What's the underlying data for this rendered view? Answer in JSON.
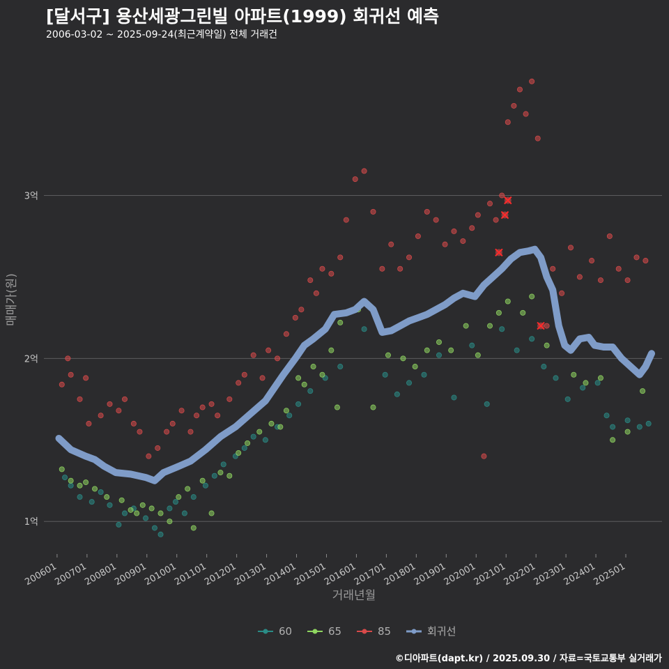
{
  "header": {
    "title": "[달서구] 용산세광그린빌 아파트(1999) 회귀선 예측",
    "subtitle": "2006-03-02 ~ 2025-09-24(최근계약일) 전체 거래건"
  },
  "footer": {
    "credit": "©디아파트(dapt.kr) / 2025.09.30 / 자료=국토교통부 실거래가"
  },
  "colors": {
    "background": "#2b2b2d",
    "grid": "#5c5c5e",
    "s60": "#2a8c86",
    "s65": "#8fd660",
    "s85": "#d94a4a",
    "regression": "#7f9cc8"
  },
  "chart_data": {
    "type": "scatter",
    "xlabel": "거래년월",
    "ylabel": "매매가(원)",
    "xlim": [
      2005.6,
      2026.25
    ],
    "ylim": [
      0.8,
      3.9
    ],
    "y_ticks": [
      {
        "value": 1,
        "label": "1억"
      },
      {
        "value": 2,
        "label": "2억"
      },
      {
        "value": 3,
        "label": "3억"
      }
    ],
    "x_ticks": [
      "200601",
      "200701",
      "200801",
      "200901",
      "201001",
      "201101",
      "201201",
      "201301",
      "201401",
      "201501",
      "201601",
      "201701",
      "201801",
      "201901",
      "202001",
      "202101",
      "202201",
      "202301",
      "202401",
      "202501"
    ],
    "legend": {
      "position": "bottom",
      "items": [
        {
          "key": "s60",
          "label": "60"
        },
        {
          "key": "s65",
          "label": "65"
        },
        {
          "key": "s85",
          "label": "85"
        },
        {
          "key": "regression",
          "label": "회귀선"
        }
      ]
    },
    "series": [
      {
        "name": "60",
        "key": "s60",
        "type": "scatter",
        "points": [
          [
            2006.3,
            1.27
          ],
          [
            2006.5,
            1.22
          ],
          [
            2006.8,
            1.15
          ],
          [
            2007.2,
            1.12
          ],
          [
            2007.5,
            1.18
          ],
          [
            2007.8,
            1.1
          ],
          [
            2008.1,
            0.98
          ],
          [
            2008.3,
            1.05
          ],
          [
            2008.6,
            1.08
          ],
          [
            2009.0,
            1.02
          ],
          [
            2009.3,
            0.96
          ],
          [
            2009.5,
            0.92
          ],
          [
            2009.8,
            1.08
          ],
          [
            2010.0,
            1.12
          ],
          [
            2010.3,
            1.05
          ],
          [
            2010.6,
            1.15
          ],
          [
            2011.0,
            1.22
          ],
          [
            2011.3,
            1.28
          ],
          [
            2011.6,
            1.35
          ],
          [
            2012.0,
            1.4
          ],
          [
            2012.3,
            1.45
          ],
          [
            2012.6,
            1.52
          ],
          [
            2013.0,
            1.5
          ],
          [
            2013.4,
            1.58
          ],
          [
            2013.8,
            1.65
          ],
          [
            2014.1,
            1.72
          ],
          [
            2014.5,
            1.8
          ],
          [
            2015.0,
            1.88
          ],
          [
            2015.5,
            1.95
          ],
          [
            2016.3,
            2.18
          ],
          [
            2017.0,
            1.9
          ],
          [
            2017.4,
            1.78
          ],
          [
            2017.8,
            1.85
          ],
          [
            2018.3,
            1.9
          ],
          [
            2018.8,
            2.02
          ],
          [
            2019.3,
            1.76
          ],
          [
            2019.9,
            2.08
          ],
          [
            2020.4,
            1.72
          ],
          [
            2020.9,
            2.18
          ],
          [
            2021.4,
            2.05
          ],
          [
            2021.9,
            2.12
          ],
          [
            2022.3,
            1.95
          ],
          [
            2022.7,
            1.88
          ],
          [
            2023.1,
            1.75
          ],
          [
            2023.6,
            1.82
          ],
          [
            2024.1,
            1.85
          ],
          [
            2024.4,
            1.65
          ],
          [
            2024.6,
            1.58
          ],
          [
            2025.1,
            1.62
          ],
          [
            2025.5,
            1.58
          ],
          [
            2025.8,
            1.6
          ]
        ]
      },
      {
        "name": "65",
        "key": "s65",
        "type": "scatter",
        "points": [
          [
            2006.2,
            1.32
          ],
          [
            2006.5,
            1.25
          ],
          [
            2006.8,
            1.22
          ],
          [
            2007.0,
            1.24
          ],
          [
            2007.3,
            1.2
          ],
          [
            2007.7,
            1.15
          ],
          [
            2008.2,
            1.13
          ],
          [
            2008.5,
            1.07
          ],
          [
            2008.7,
            1.05
          ],
          [
            2008.9,
            1.1
          ],
          [
            2009.2,
            1.08
          ],
          [
            2009.5,
            1.05
          ],
          [
            2009.8,
            1.0
          ],
          [
            2010.1,
            1.15
          ],
          [
            2010.4,
            1.2
          ],
          [
            2010.6,
            0.96
          ],
          [
            2010.9,
            1.25
          ],
          [
            2011.2,
            1.05
          ],
          [
            2011.5,
            1.3
          ],
          [
            2011.8,
            1.28
          ],
          [
            2012.1,
            1.42
          ],
          [
            2012.4,
            1.48
          ],
          [
            2012.8,
            1.55
          ],
          [
            2013.2,
            1.6
          ],
          [
            2013.5,
            1.58
          ],
          [
            2013.7,
            1.68
          ],
          [
            2014.1,
            1.88
          ],
          [
            2014.3,
            1.84
          ],
          [
            2014.6,
            1.95
          ],
          [
            2014.9,
            1.9
          ],
          [
            2015.2,
            2.05
          ],
          [
            2015.5,
            2.22
          ],
          [
            2015.4,
            1.7
          ],
          [
            2016.1,
            2.3
          ],
          [
            2016.6,
            1.7
          ],
          [
            2017.1,
            2.02
          ],
          [
            2017.6,
            2.0
          ],
          [
            2018.0,
            1.95
          ],
          [
            2018.4,
            2.05
          ],
          [
            2018.8,
            2.1
          ],
          [
            2019.2,
            2.05
          ],
          [
            2019.7,
            2.2
          ],
          [
            2020.1,
            2.02
          ],
          [
            2020.5,
            2.2
          ],
          [
            2020.8,
            2.28
          ],
          [
            2021.1,
            2.35
          ],
          [
            2021.6,
            2.28
          ],
          [
            2021.9,
            2.38
          ],
          [
            2022.4,
            2.08
          ],
          [
            2023.3,
            1.9
          ],
          [
            2023.7,
            1.85
          ],
          [
            2024.2,
            1.88
          ],
          [
            2024.6,
            1.5
          ],
          [
            2025.1,
            1.55
          ],
          [
            2025.6,
            1.8
          ]
        ]
      },
      {
        "name": "85",
        "key": "s85",
        "type": "scatter",
        "points": [
          [
            2006.2,
            1.84
          ],
          [
            2006.4,
            2.0
          ],
          [
            2006.5,
            1.9
          ],
          [
            2006.8,
            1.75
          ],
          [
            2007.0,
            1.88
          ],
          [
            2007.1,
            1.6
          ],
          [
            2007.5,
            1.65
          ],
          [
            2007.8,
            1.72
          ],
          [
            2008.1,
            1.68
          ],
          [
            2008.3,
            1.75
          ],
          [
            2008.6,
            1.6
          ],
          [
            2008.8,
            1.55
          ],
          [
            2009.1,
            1.4
          ],
          [
            2009.4,
            1.45
          ],
          [
            2009.7,
            1.55
          ],
          [
            2009.9,
            1.6
          ],
          [
            2010.2,
            1.68
          ],
          [
            2010.5,
            1.55
          ],
          [
            2010.7,
            1.65
          ],
          [
            2010.9,
            1.7
          ],
          [
            2011.2,
            1.72
          ],
          [
            2011.4,
            1.65
          ],
          [
            2011.8,
            1.75
          ],
          [
            2012.1,
            1.85
          ],
          [
            2012.3,
            1.9
          ],
          [
            2012.6,
            2.02
          ],
          [
            2012.9,
            1.88
          ],
          [
            2013.1,
            2.05
          ],
          [
            2013.4,
            2.0
          ],
          [
            2013.7,
            2.15
          ],
          [
            2014.0,
            2.25
          ],
          [
            2014.2,
            2.3
          ],
          [
            2014.5,
            2.48
          ],
          [
            2014.7,
            2.4
          ],
          [
            2014.9,
            2.55
          ],
          [
            2015.2,
            2.52
          ],
          [
            2015.5,
            2.62
          ],
          [
            2015.7,
            2.85
          ],
          [
            2016.0,
            3.1
          ],
          [
            2016.3,
            3.15
          ],
          [
            2016.6,
            2.9
          ],
          [
            2016.9,
            2.55
          ],
          [
            2017.2,
            2.7
          ],
          [
            2017.5,
            2.55
          ],
          [
            2017.8,
            2.62
          ],
          [
            2018.1,
            2.75
          ],
          [
            2018.4,
            2.9
          ],
          [
            2018.7,
            2.85
          ],
          [
            2019.0,
            2.7
          ],
          [
            2019.3,
            2.78
          ],
          [
            2019.6,
            2.72
          ],
          [
            2019.9,
            2.8
          ],
          [
            2020.1,
            2.88
          ],
          [
            2020.3,
            1.4
          ],
          [
            2020.5,
            2.95
          ],
          [
            2020.7,
            2.85
          ],
          [
            2020.9,
            3.0
          ],
          [
            2021.1,
            3.45
          ],
          [
            2021.3,
            3.55
          ],
          [
            2021.5,
            3.65
          ],
          [
            2021.7,
            3.5
          ],
          [
            2021.9,
            3.7
          ],
          [
            2022.1,
            3.35
          ],
          [
            2022.4,
            2.2
          ],
          [
            2022.6,
            2.55
          ],
          [
            2022.9,
            2.4
          ],
          [
            2023.2,
            2.68
          ],
          [
            2023.5,
            2.5
          ],
          [
            2023.9,
            2.6
          ],
          [
            2024.2,
            2.48
          ],
          [
            2024.5,
            2.75
          ],
          [
            2024.8,
            2.55
          ],
          [
            2025.1,
            2.48
          ],
          [
            2025.4,
            2.62
          ],
          [
            2025.7,
            2.6
          ]
        ]
      },
      {
        "name": "회귀선",
        "key": "regression",
        "type": "line",
        "points": [
          [
            2006.1,
            1.51
          ],
          [
            2006.5,
            1.44
          ],
          [
            2007.0,
            1.4
          ],
          [
            2007.3,
            1.38
          ],
          [
            2007.6,
            1.34
          ],
          [
            2008.0,
            1.3
          ],
          [
            2008.5,
            1.29
          ],
          [
            2009.0,
            1.27
          ],
          [
            2009.3,
            1.25
          ],
          [
            2009.6,
            1.3
          ],
          [
            2010.0,
            1.33
          ],
          [
            2010.5,
            1.37
          ],
          [
            2011.0,
            1.44
          ],
          [
            2011.5,
            1.52
          ],
          [
            2012.0,
            1.58
          ],
          [
            2012.5,
            1.66
          ],
          [
            2013.0,
            1.74
          ],
          [
            2013.3,
            1.82
          ],
          [
            2013.6,
            1.9
          ],
          [
            2014.0,
            2.0
          ],
          [
            2014.3,
            2.08
          ],
          [
            2014.6,
            2.12
          ],
          [
            2015.0,
            2.18
          ],
          [
            2015.3,
            2.27
          ],
          [
            2015.7,
            2.28
          ],
          [
            2016.0,
            2.3
          ],
          [
            2016.3,
            2.35
          ],
          [
            2016.6,
            2.3
          ],
          [
            2016.9,
            2.16
          ],
          [
            2017.2,
            2.17
          ],
          [
            2017.5,
            2.2
          ],
          [
            2017.8,
            2.23
          ],
          [
            2018.1,
            2.25
          ],
          [
            2018.4,
            2.27
          ],
          [
            2018.7,
            2.3
          ],
          [
            2019.0,
            2.33
          ],
          [
            2019.3,
            2.37
          ],
          [
            2019.6,
            2.4
          ],
          [
            2020.0,
            2.38
          ],
          [
            2020.3,
            2.45
          ],
          [
            2020.6,
            2.5
          ],
          [
            2020.9,
            2.55
          ],
          [
            2021.2,
            2.61
          ],
          [
            2021.5,
            2.65
          ],
          [
            2021.8,
            2.66
          ],
          [
            2022.0,
            2.67
          ],
          [
            2022.2,
            2.62
          ],
          [
            2022.4,
            2.5
          ],
          [
            2022.6,
            2.42
          ],
          [
            2022.8,
            2.2
          ],
          [
            2023.0,
            2.08
          ],
          [
            2023.2,
            2.05
          ],
          [
            2023.5,
            2.12
          ],
          [
            2023.8,
            2.13
          ],
          [
            2024.0,
            2.08
          ],
          [
            2024.3,
            2.07
          ],
          [
            2024.6,
            2.07
          ],
          [
            2024.9,
            2.0
          ],
          [
            2025.2,
            1.95
          ],
          [
            2025.5,
            1.9
          ],
          [
            2025.7,
            1.95
          ],
          [
            2025.9,
            2.03
          ]
        ]
      }
    ],
    "highlight_points": [
      {
        "label": "85",
        "x": 2020.8,
        "y": 2.65
      },
      {
        "label": "85",
        "x": 2021.0,
        "y": 2.88
      },
      {
        "label": "85",
        "x": 2021.1,
        "y": 2.97
      },
      {
        "label": "85",
        "x": 2022.2,
        "y": 2.2
      }
    ]
  }
}
